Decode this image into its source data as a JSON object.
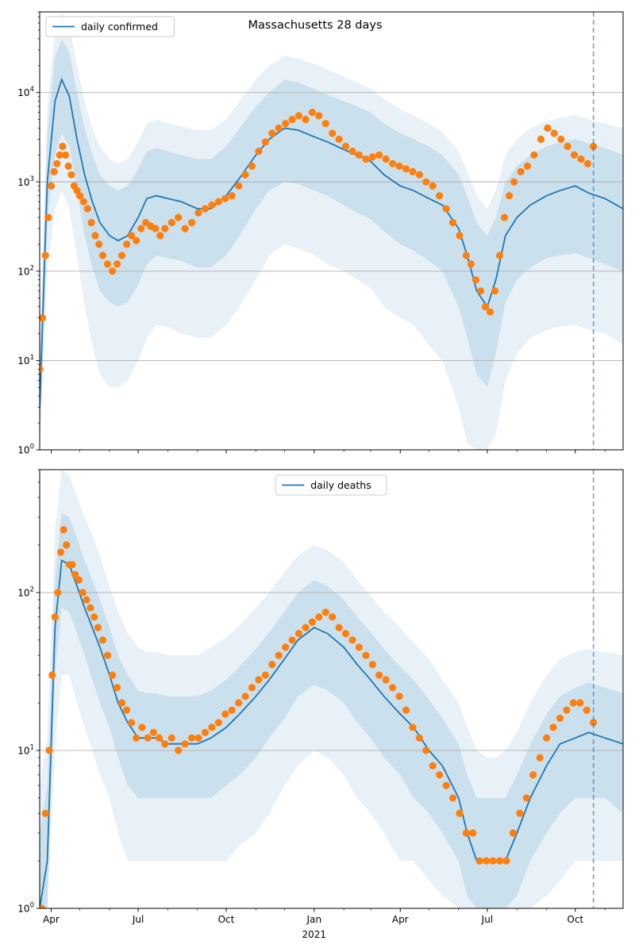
{
  "figure": {
    "title": "Massachusetts 28 days"
  },
  "colors": {
    "model_line": "#1f77b4",
    "band": "#1f77b4",
    "observed": "#ff7f0e",
    "grid": "#b0b0b0"
  },
  "chart_data": [
    {
      "type": "line",
      "panel": "top",
      "legend": {
        "label": "daily confirmed",
        "placement": "upper-left"
      },
      "y_scale": "log",
      "ylim": [
        1,
        80000
      ],
      "y_ticks": [
        1,
        10,
        100,
        1000,
        10000
      ],
      "y_tick_labels": [
        "10^0",
        "10^1",
        "10^2",
        "10^3",
        "10^4"
      ],
      "xlim": [
        "2020-03-20",
        "2021-11-20"
      ],
      "x_ticks": [
        "2020-04-01",
        "2020-07-01",
        "2020-10-01",
        "2021-01-01",
        "2021-04-01",
        "2021-07-01",
        "2021-10-01"
      ],
      "x_tick_labels": [
        "Apr",
        "Jul",
        "Oct",
        "Jan",
        "Apr",
        "Jul",
        "Oct"
      ],
      "year_label": "2021",
      "grid": "y-major",
      "vline_date": "2021-10-20",
      "model": {
        "dates": [
          "2020-03-20",
          "2020-03-28",
          "2020-04-05",
          "2020-04-12",
          "2020-04-20",
          "2020-04-28",
          "2020-05-06",
          "2020-05-14",
          "2020-05-22",
          "2020-06-01",
          "2020-06-10",
          "2020-06-20",
          "2020-07-01",
          "2020-07-10",
          "2020-07-20",
          "2020-08-01",
          "2020-08-15",
          "2020-09-01",
          "2020-09-15",
          "2020-10-01",
          "2020-10-15",
          "2020-11-01",
          "2020-11-15",
          "2020-12-01",
          "2020-12-15",
          "2021-01-01",
          "2021-01-15",
          "2021-02-01",
          "2021-02-15",
          "2021-03-01",
          "2021-03-15",
          "2021-04-01",
          "2021-04-15",
          "2021-05-01",
          "2021-05-15",
          "2021-06-01",
          "2021-06-10",
          "2021-06-20",
          "2021-07-01",
          "2021-07-10",
          "2021-07-20",
          "2021-08-01",
          "2021-08-15",
          "2021-09-01",
          "2021-09-15",
          "2021-10-01",
          "2021-10-15",
          "2021-11-01",
          "2021-11-20"
        ],
        "values": [
          3,
          1000,
          8000,
          14000,
          9000,
          3000,
          1200,
          600,
          350,
          250,
          220,
          250,
          400,
          650,
          700,
          650,
          600,
          500,
          500,
          700,
          1100,
          2000,
          3000,
          4000,
          3800,
          3200,
          2800,
          2300,
          2000,
          1700,
          1200,
          900,
          800,
          650,
          550,
          300,
          150,
          60,
          40,
          80,
          250,
          400,
          550,
          700,
          800,
          900,
          750,
          650,
          500
        ],
        "band_inner_lo": [
          1,
          400,
          2000,
          3500,
          2500,
          800,
          250,
          110,
          60,
          45,
          40,
          45,
          70,
          120,
          150,
          140,
          130,
          110,
          110,
          150,
          250,
          500,
          800,
          1000,
          950,
          800,
          700,
          550,
          450,
          380,
          280,
          200,
          170,
          130,
          100,
          40,
          18,
          7,
          5,
          12,
          45,
          80,
          110,
          140,
          150,
          160,
          140,
          120,
          100
        ],
        "band_inner_hi": [
          8,
          3500,
          25000,
          40000,
          28000,
          10000,
          4000,
          2000,
          1200,
          900,
          800,
          900,
          1400,
          2200,
          2400,
          2200,
          2000,
          1800,
          1800,
          2500,
          4000,
          7000,
          10000,
          14000,
          13000,
          11000,
          9500,
          8000,
          7000,
          6000,
          4500,
          3500,
          3000,
          2500,
          2000,
          1200,
          700,
          350,
          250,
          400,
          1000,
          1500,
          2000,
          2500,
          2800,
          3000,
          2700,
          2400,
          2000
        ],
        "band_outer_lo": [
          1,
          100,
          500,
          800,
          500,
          150,
          40,
          15,
          7,
          5,
          5,
          6,
          10,
          18,
          25,
          24,
          20,
          18,
          18,
          25,
          40,
          80,
          150,
          200,
          180,
          150,
          120,
          100,
          80,
          65,
          40,
          30,
          25,
          15,
          10,
          3,
          1.2,
          1,
          1,
          1.5,
          6,
          12,
          18,
          22,
          24,
          25,
          22,
          20,
          15
        ],
        "band_outer_hi": [
          15,
          7000,
          50000,
          80000,
          55000,
          20000,
          8000,
          4000,
          2500,
          1800,
          1600,
          1800,
          2800,
          4500,
          5000,
          4500,
          4200,
          3800,
          3800,
          5000,
          8000,
          14000,
          20000,
          26000,
          24000,
          21000,
          18000,
          15000,
          13000,
          11000,
          8500,
          6500,
          5500,
          4500,
          3600,
          2200,
          1300,
          700,
          500,
          800,
          2000,
          3000,
          4000,
          4800,
          5200,
          5600,
          5000,
          4500,
          4000
        ]
      },
      "observed": {
        "dates": [
          "2020-03-20",
          "2020-03-23",
          "2020-03-26",
          "2020-03-29",
          "2020-04-01",
          "2020-04-04",
          "2020-04-07",
          "2020-04-10",
          "2020-04-13",
          "2020-04-16",
          "2020-04-19",
          "2020-04-22",
          "2020-04-25",
          "2020-04-28",
          "2020-05-01",
          "2020-05-05",
          "2020-05-09",
          "2020-05-13",
          "2020-05-17",
          "2020-05-21",
          "2020-05-25",
          "2020-05-30",
          "2020-06-04",
          "2020-06-09",
          "2020-06-14",
          "2020-06-19",
          "2020-06-24",
          "2020-06-29",
          "2020-07-04",
          "2020-07-09",
          "2020-07-14",
          "2020-07-19",
          "2020-07-24",
          "2020-07-29",
          "2020-08-05",
          "2020-08-12",
          "2020-08-19",
          "2020-08-26",
          "2020-09-02",
          "2020-09-09",
          "2020-09-16",
          "2020-09-23",
          "2020-09-30",
          "2020-10-07",
          "2020-10-14",
          "2020-10-21",
          "2020-10-28",
          "2020-11-04",
          "2020-11-11",
          "2020-11-18",
          "2020-11-25",
          "2020-12-02",
          "2020-12-09",
          "2020-12-16",
          "2020-12-23",
          "2020-12-30",
          "2021-01-06",
          "2021-01-13",
          "2021-01-20",
          "2021-01-27",
          "2021-02-03",
          "2021-02-10",
          "2021-02-17",
          "2021-02-24",
          "2021-03-03",
          "2021-03-10",
          "2021-03-17",
          "2021-03-24",
          "2021-03-31",
          "2021-04-07",
          "2021-04-14",
          "2021-04-21",
          "2021-04-28",
          "2021-05-05",
          "2021-05-12",
          "2021-05-19",
          "2021-05-26",
          "2021-06-02",
          "2021-06-09",
          "2021-06-14",
          "2021-06-19",
          "2021-06-24",
          "2021-06-29",
          "2021-07-04",
          "2021-07-09",
          "2021-07-14",
          "2021-07-19",
          "2021-07-24",
          "2021-07-29",
          "2021-08-05",
          "2021-08-12",
          "2021-08-19",
          "2021-08-26",
          "2021-09-02",
          "2021-09-09",
          "2021-09-16",
          "2021-09-23",
          "2021-09-30",
          "2021-10-07",
          "2021-10-14",
          "2021-10-20"
        ],
        "values": [
          8,
          30,
          150,
          400,
          900,
          1300,
          1600,
          2000,
          2500,
          2000,
          1500,
          1200,
          900,
          800,
          700,
          600,
          500,
          350,
          250,
          200,
          150,
          120,
          100,
          120,
          150,
          200,
          250,
          220,
          300,
          350,
          320,
          300,
          250,
          300,
          350,
          400,
          300,
          350,
          450,
          500,
          550,
          600,
          650,
          700,
          900,
          1200,
          1500,
          2200,
          2800,
          3500,
          4000,
          4500,
          5000,
          5500,
          5000,
          6000,
          5500,
          4500,
          3500,
          3000,
          2500,
          2200,
          2000,
          1800,
          1900,
          2000,
          1800,
          1600,
          1500,
          1400,
          1300,
          1200,
          1000,
          900,
          700,
          500,
          350,
          250,
          150,
          120,
          80,
          60,
          40,
          35,
          60,
          150,
          400,
          700,
          1000,
          1300,
          1500,
          2000,
          3000,
          4000,
          3500,
          3000,
          2500,
          2000,
          1800,
          1600,
          2500
        ]
      }
    },
    {
      "type": "line",
      "panel": "bottom",
      "legend": {
        "label": "daily deaths",
        "placement": "upper-center"
      },
      "y_scale": "log",
      "ylim": [
        1,
        600
      ],
      "y_ticks": [
        1,
        10,
        100
      ],
      "y_tick_labels": [
        "10^0",
        "10^1",
        "10^2"
      ],
      "xlim": [
        "2020-03-20",
        "2021-11-20"
      ],
      "x_ticks": [
        "2020-04-01",
        "2020-07-01",
        "2020-10-01",
        "2021-01-01",
        "2021-04-01",
        "2021-07-01",
        "2021-10-01"
      ],
      "x_tick_labels": [
        "Apr",
        "Jul",
        "Oct",
        "Jan",
        "Apr",
        "Jul",
        "Oct"
      ],
      "year_label": "2021",
      "grid": "y-major",
      "vline_date": "2021-10-20",
      "model": {
        "dates": [
          "2020-03-20",
          "2020-03-28",
          "2020-04-05",
          "2020-04-12",
          "2020-04-20",
          "2020-04-28",
          "2020-05-06",
          "2020-05-14",
          "2020-05-22",
          "2020-06-01",
          "2020-06-10",
          "2020-06-20",
          "2020-07-01",
          "2020-07-10",
          "2020-07-20",
          "2020-08-01",
          "2020-08-15",
          "2020-09-01",
          "2020-09-15",
          "2020-10-01",
          "2020-10-15",
          "2020-11-01",
          "2020-11-15",
          "2020-12-01",
          "2020-12-15",
          "2021-01-01",
          "2021-01-15",
          "2021-02-01",
          "2021-02-15",
          "2021-03-01",
          "2021-03-15",
          "2021-04-01",
          "2021-04-15",
          "2021-05-01",
          "2021-05-15",
          "2021-06-01",
          "2021-06-10",
          "2021-06-20",
          "2021-07-01",
          "2021-07-10",
          "2021-07-20",
          "2021-08-01",
          "2021-08-15",
          "2021-09-01",
          "2021-09-15",
          "2021-10-01",
          "2021-10-15",
          "2021-11-01",
          "2021-11-20"
        ],
        "values": [
          1,
          2,
          60,
          160,
          150,
          110,
          80,
          60,
          45,
          30,
          20,
          15,
          12,
          12,
          12,
          11,
          11,
          11,
          12,
          14,
          17,
          22,
          28,
          38,
          50,
          60,
          55,
          45,
          35,
          28,
          22,
          17,
          14,
          10,
          8,
          5,
          3,
          2,
          2,
          2,
          2,
          3,
          5,
          8,
          11,
          12,
          13,
          12,
          11
        ],
        "band_inner_lo": [
          1,
          1,
          30,
          80,
          75,
          55,
          40,
          28,
          20,
          14,
          9,
          6,
          5,
          5,
          5,
          5,
          5,
          5,
          5,
          6,
          7,
          9,
          12,
          16,
          22,
          26,
          24,
          20,
          15,
          12,
          9,
          7,
          5,
          4,
          3,
          2,
          1.2,
          1,
          1,
          1,
          1,
          1.2,
          2,
          3,
          4,
          5,
          5,
          5,
          4
        ],
        "band_inner_hi": [
          3,
          6,
          120,
          320,
          300,
          220,
          160,
          120,
          90,
          60,
          40,
          30,
          24,
          23,
          23,
          22,
          22,
          22,
          24,
          28,
          34,
          44,
          56,
          76,
          100,
          120,
          110,
          90,
          70,
          56,
          44,
          34,
          28,
          21,
          16,
          11,
          7,
          5,
          5,
          5,
          5,
          7,
          11,
          17,
          22,
          25,
          27,
          25,
          23
        ],
        "band_outer_lo": [
          1,
          1,
          10,
          30,
          30,
          20,
          14,
          10,
          7,
          5,
          3,
          2,
          2,
          2,
          2,
          2,
          2,
          2,
          2,
          2,
          2.5,
          3,
          4,
          6,
          8,
          10,
          9,
          7,
          5,
          4,
          3,
          2,
          2,
          1.5,
          1.2,
          1,
          1,
          1,
          1,
          1,
          1,
          1,
          1,
          1.2,
          1.5,
          2,
          2,
          2,
          2
        ],
        "band_outer_hi": [
          6,
          12,
          250,
          600,
          550,
          400,
          300,
          230,
          170,
          110,
          75,
          55,
          45,
          42,
          42,
          40,
          40,
          40,
          45,
          52,
          62,
          80,
          100,
          135,
          170,
          200,
          185,
          155,
          120,
          95,
          75,
          60,
          48,
          38,
          28,
          20,
          14,
          10,
          9,
          9,
          10,
          13,
          20,
          30,
          38,
          42,
          44,
          42,
          40
        ]
      },
      "observed": {
        "dates": [
          "2020-03-22",
          "2020-03-26",
          "2020-03-30",
          "2020-04-02",
          "2020-04-05",
          "2020-04-08",
          "2020-04-11",
          "2020-04-14",
          "2020-04-17",
          "2020-04-20",
          "2020-04-23",
          "2020-04-26",
          "2020-04-30",
          "2020-05-04",
          "2020-05-08",
          "2020-05-12",
          "2020-05-16",
          "2020-05-20",
          "2020-05-25",
          "2020-05-30",
          "2020-06-04",
          "2020-06-09",
          "2020-06-14",
          "2020-06-19",
          "2020-06-24",
          "2020-06-29",
          "2020-07-05",
          "2020-07-11",
          "2020-07-17",
          "2020-07-23",
          "2020-07-29",
          "2020-08-05",
          "2020-08-12",
          "2020-08-19",
          "2020-08-26",
          "2020-09-02",
          "2020-09-09",
          "2020-09-16",
          "2020-09-23",
          "2020-09-30",
          "2020-10-07",
          "2020-10-14",
          "2020-10-21",
          "2020-10-28",
          "2020-11-04",
          "2020-11-11",
          "2020-11-18",
          "2020-11-25",
          "2020-12-02",
          "2020-12-09",
          "2020-12-16",
          "2020-12-23",
          "2020-12-30",
          "2021-01-06",
          "2021-01-13",
          "2021-01-20",
          "2021-01-27",
          "2021-02-03",
          "2021-02-10",
          "2021-02-17",
          "2021-02-24",
          "2021-03-03",
          "2021-03-10",
          "2021-03-17",
          "2021-03-24",
          "2021-03-31",
          "2021-04-07",
          "2021-04-14",
          "2021-04-21",
          "2021-04-28",
          "2021-05-05",
          "2021-05-12",
          "2021-05-19",
          "2021-05-26",
          "2021-06-02",
          "2021-06-09",
          "2021-06-16",
          "2021-06-23",
          "2021-06-30",
          "2021-07-07",
          "2021-07-14",
          "2021-07-21",
          "2021-07-28",
          "2021-08-04",
          "2021-08-11",
          "2021-08-18",
          "2021-08-25",
          "2021-09-01",
          "2021-09-08",
          "2021-09-15",
          "2021-09-22",
          "2021-09-29",
          "2021-10-06",
          "2021-10-13",
          "2021-10-20"
        ],
        "values": [
          1,
          4,
          10,
          30,
          70,
          100,
          180,
          250,
          200,
          150,
          150,
          130,
          120,
          100,
          90,
          80,
          70,
          60,
          50,
          40,
          30,
          25,
          20,
          18,
          15,
          12,
          14,
          12,
          13,
          12,
          11,
          12,
          10,
          11,
          12,
          12,
          13,
          14,
          15,
          17,
          18,
          20,
          22,
          25,
          28,
          30,
          35,
          40,
          45,
          50,
          55,
          60,
          65,
          70,
          75,
          70,
          60,
          55,
          50,
          45,
          40,
          35,
          30,
          28,
          25,
          22,
          18,
          14,
          12,
          10,
          8,
          7,
          6,
          5,
          4,
          3,
          3,
          2,
          2,
          2,
          2,
          2,
          3,
          4,
          5,
          7,
          9,
          12,
          14,
          16,
          18,
          20,
          20,
          18,
          15
        ]
      }
    }
  ]
}
